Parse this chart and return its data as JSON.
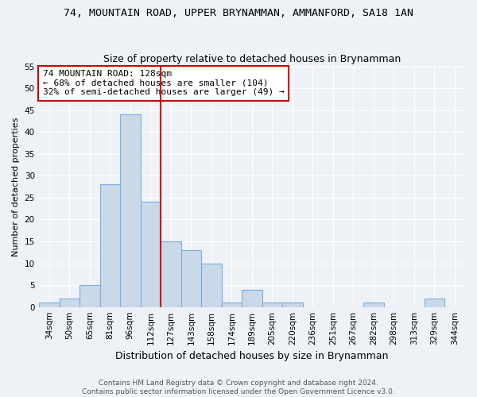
{
  "title": "74, MOUNTAIN ROAD, UPPER BRYNAMMAN, AMMANFORD, SA18 1AN",
  "subtitle": "Size of property relative to detached houses in Brynamman",
  "xlabel": "Distribution of detached houses by size in Brynamman",
  "ylabel": "Number of detached properties",
  "categories": [
    "34sqm",
    "50sqm",
    "65sqm",
    "81sqm",
    "96sqm",
    "112sqm",
    "127sqm",
    "143sqm",
    "158sqm",
    "174sqm",
    "189sqm",
    "205sqm",
    "220sqm",
    "236sqm",
    "251sqm",
    "267sqm",
    "282sqm",
    "298sqm",
    "313sqm",
    "329sqm",
    "344sqm"
  ],
  "values": [
    1,
    2,
    5,
    28,
    44,
    24,
    15,
    13,
    10,
    1,
    4,
    1,
    1,
    0,
    0,
    0,
    1,
    0,
    0,
    2,
    0
  ],
  "bar_color": "#c9d9e8",
  "bar_edge_color": "#7aade0",
  "bin_edges": [
    34,
    50,
    65,
    81,
    96,
    112,
    127,
    143,
    158,
    174,
    189,
    205,
    220,
    236,
    251,
    267,
    282,
    298,
    313,
    329,
    344,
    360
  ],
  "vline_color": "#cc0000",
  "ylim": [
    0,
    55
  ],
  "yticks": [
    0,
    5,
    10,
    15,
    20,
    25,
    30,
    35,
    40,
    45,
    50,
    55
  ],
  "annotation_title": "74 MOUNTAIN ROAD: 128sqm",
  "annotation_line1": "← 68% of detached houses are smaller (104)",
  "annotation_line2": "32% of semi-detached houses are larger (49) →",
  "annotation_box_color": "#cc0000",
  "footer_line1": "Contains HM Land Registry data © Crown copyright and database right 2024.",
  "footer_line2": "Contains public sector information licensed under the Open Government Licence v3.0.",
  "title_fontsize": 9.5,
  "subtitle_fontsize": 9,
  "ylabel_fontsize": 8,
  "xlabel_fontsize": 9,
  "tick_fontsize": 7.5,
  "annotation_fontsize": 8,
  "footer_fontsize": 6.5,
  "background_color": "#eef2f7",
  "axes_background": "#eef2f7",
  "grid_color": "#ffffff"
}
